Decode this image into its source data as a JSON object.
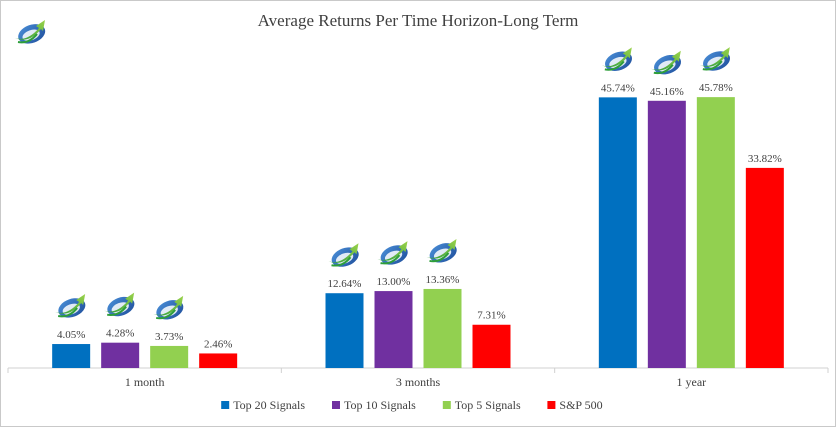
{
  "chart_data": {
    "type": "bar",
    "title": "Average Returns Per Time Horizon-Long Term",
    "xlabel": "",
    "ylabel": "",
    "categories": [
      "1 month",
      "3 months",
      "1 year"
    ],
    "series": [
      {
        "name": "Top 20 Signals",
        "color": "#0070C0",
        "values": [
          4.05,
          12.64,
          45.74
        ],
        "labels": [
          "4.05%",
          "12.64%",
          "45.74%"
        ]
      },
      {
        "name": "Top 10 Signals",
        "color": "#7030A0",
        "values": [
          4.28,
          13.0,
          45.16
        ],
        "labels": [
          "4.28%",
          "13.00%",
          "45.16%"
        ]
      },
      {
        "name": "Top 5 Signals",
        "color": "#92D050",
        "values": [
          3.73,
          13.36,
          45.78
        ],
        "labels": [
          "3.73%",
          "13.36%",
          "45.78%"
        ]
      },
      {
        "name": "S&P 500",
        "color": "#FF0000",
        "values": [
          2.46,
          7.31,
          33.82
        ],
        "labels": [
          "2.46%",
          "7.31%",
          "33.82%"
        ]
      }
    ],
    "ylim": [
      0,
      50
    ],
    "grid": false,
    "legend_position": "bottom",
    "value_format": "percent",
    "logo_icon": "growth-arrow-logo-icon",
    "logo_marked_series": [
      "Top 20 Signals",
      "Top 10 Signals",
      "Top 5 Signals"
    ]
  }
}
